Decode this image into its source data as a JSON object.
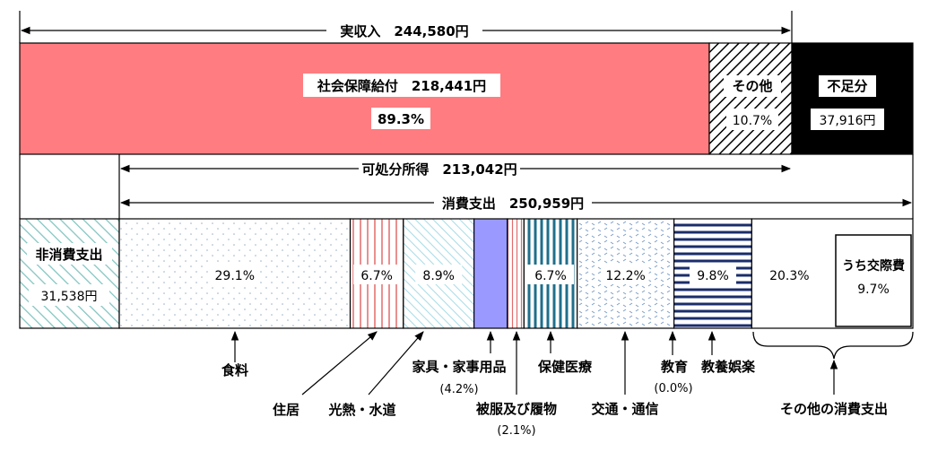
{
  "colors": {
    "social": "#ff7c80",
    "deficit": "#000000",
    "hatch_stroke": "#000000",
    "teal_stroke": "#7fc4c0",
    "dot": "#9bb0c4",
    "pink_stroke": "#e36b6b",
    "cyan_stroke": "#7fc6d6",
    "clothing": "#9999ff",
    "health_stroke": "#1f6f8b",
    "transport": "#7b9cc7",
    "leisure_stroke": "#1a2d6b"
  },
  "labels": {
    "actual_income": "実収入　244,580円",
    "disposable_income": "可処分所得　213,042円",
    "consumption": "消費支出　250,959円"
  },
  "chart_data": {
    "type": "bar",
    "income_bar": {
      "segments": [
        {
          "id": "social",
          "name": "社会保障給付　218,441円",
          "pct_label": "89.3%",
          "value": 218441
        },
        {
          "id": "other_income",
          "name": "その他",
          "pct_label": "10.7%",
          "value": 26139
        },
        {
          "id": "deficit",
          "name": "不足分",
          "amount_label": "37,916円",
          "value": 37916
        }
      ]
    },
    "expense_bar": {
      "non_consumption": {
        "name": "非消費支出",
        "amount_label": "31,538円",
        "value": 31538
      },
      "segments": [
        {
          "id": "food",
          "name": "食料",
          "pct_label": "29.1%",
          "pct": 29.1
        },
        {
          "id": "housing",
          "name": "住居",
          "pct_label": "6.7%",
          "pct": 6.7
        },
        {
          "id": "utilities",
          "name": "光熱・水道",
          "pct_label": "8.9%",
          "pct": 8.9
        },
        {
          "id": "furniture",
          "name": "家具・家事用品",
          "sub_label": "(4.2%)",
          "pct": 4.2
        },
        {
          "id": "clothing",
          "name": "被服及び履物",
          "sub_label": "(2.1%)",
          "pct": 2.1
        },
        {
          "id": "health",
          "name": "保健医療",
          "pct_label": "6.7%",
          "pct": 6.7
        },
        {
          "id": "transport",
          "name": "交通・通信",
          "pct_label": "12.2%",
          "pct": 12.2
        },
        {
          "id": "education",
          "name": "教育",
          "sub_label": "(0.0%)",
          "pct": 0.0
        },
        {
          "id": "leisure",
          "name": "教養娯楽",
          "pct_label": "9.8%",
          "pct": 9.8
        },
        {
          "id": "other_consumption",
          "name": "その他の消費支出",
          "pct_label": "20.3%",
          "pct": 20.3,
          "inner": {
            "name": "うち交際費",
            "pct_label": "9.7%",
            "pct": 9.7
          }
        }
      ]
    }
  }
}
